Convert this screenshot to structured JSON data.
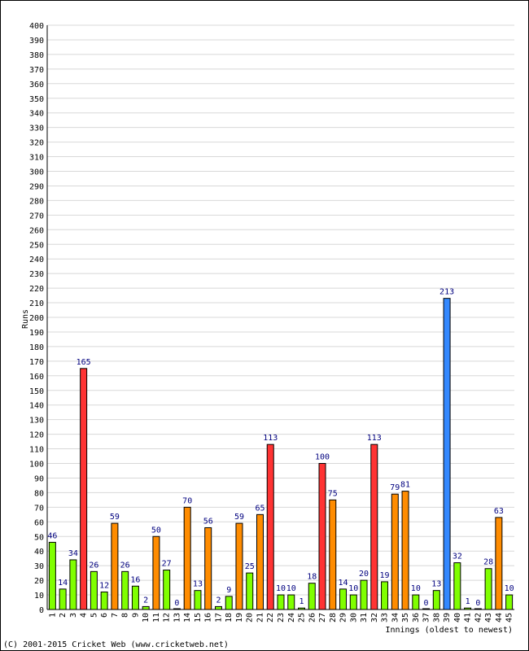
{
  "chart_data": {
    "type": "bar",
    "xlabel": "Innings (oldest to newest)",
    "ylabel": "Runs",
    "ylim": [
      0,
      400
    ],
    "ytick_step": 10,
    "grid": true,
    "categories": [
      "1",
      "2",
      "3",
      "4",
      "5",
      "6",
      "7",
      "8",
      "9",
      "10",
      "11",
      "12",
      "13",
      "14",
      "15",
      "16",
      "17",
      "18",
      "19",
      "20",
      "21",
      "22",
      "23",
      "24",
      "25",
      "26",
      "27",
      "28",
      "29",
      "30",
      "31",
      "32",
      "33",
      "34",
      "35",
      "36",
      "37",
      "38",
      "39",
      "40",
      "41",
      "42",
      "43",
      "44",
      "45"
    ],
    "values": [
      46,
      14,
      34,
      165,
      26,
      12,
      59,
      26,
      16,
      2,
      50,
      27,
      0,
      70,
      13,
      56,
      2,
      9,
      59,
      25,
      65,
      113,
      10,
      10,
      1,
      18,
      100,
      75,
      14,
      10,
      20,
      113,
      19,
      79,
      81,
      10,
      0,
      13,
      213,
      32,
      1,
      0,
      28,
      63,
      10
    ],
    "colors": {
      "under_50": "#80ff00",
      "fifty_to_99": "#ff8c00",
      "hundred_plus": "#ff3333",
      "double_hundred": "#3388ff",
      "bar_edge": "#000000",
      "grid": "#d8d8d8",
      "data_label": "#00007f"
    }
  },
  "footer": {
    "copyright": "(C) 2001-2015 Cricket Web (www.cricketweb.net)"
  }
}
